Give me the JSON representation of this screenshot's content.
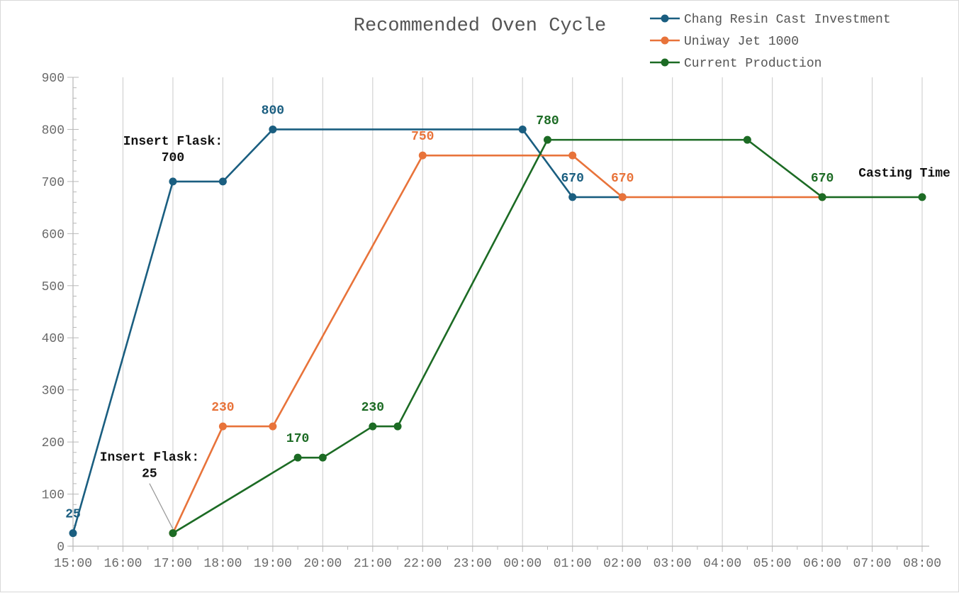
{
  "chart_data": {
    "type": "line",
    "title": "Recommended Oven Cycle",
    "xlabel": "",
    "ylabel": "",
    "x_ticks": [
      "15:00",
      "16:00",
      "17:00",
      "18:00",
      "19:00",
      "20:00",
      "21:00",
      "22:00",
      "23:00",
      "00:00",
      "01:00",
      "02:00",
      "03:00",
      "04:00",
      "05:00",
      "06:00",
      "07:00",
      "08:00"
    ],
    "x_range_hours": [
      0,
      17
    ],
    "ylim": [
      0,
      900
    ],
    "y_ticks": [
      "0",
      "100",
      "200",
      "300",
      "400",
      "500",
      "600",
      "700",
      "800",
      "900"
    ],
    "grid": "vertical",
    "legend_position": "top-right",
    "series": [
      {
        "name": "Chang Resin Cast Investment",
        "color": "#1a5e80",
        "points": [
          {
            "x": "15:00",
            "y": 25,
            "label": "25"
          },
          {
            "x": "17:00",
            "y": 700,
            "label": ""
          },
          {
            "x": "18:00",
            "y": 700,
            "label": ""
          },
          {
            "x": "19:00",
            "y": 800,
            "label": "800"
          },
          {
            "x": "00:00",
            "y": 800,
            "label": ""
          },
          {
            "x": "01:00",
            "y": 670,
            "label": "670"
          },
          {
            "x": "02:00",
            "y": 670,
            "label": ""
          }
        ]
      },
      {
        "name": "Uniway Jet 1000",
        "color": "#e8733a",
        "points": [
          {
            "x": "17:00",
            "y": 25,
            "label": ""
          },
          {
            "x": "18:00",
            "y": 230,
            "label": "230"
          },
          {
            "x": "19:00",
            "y": 230,
            "label": ""
          },
          {
            "x": "22:00",
            "y": 750,
            "label": "750"
          },
          {
            "x": "01:00",
            "y": 750,
            "label": ""
          },
          {
            "x": "02:00",
            "y": 670,
            "label": "670"
          },
          {
            "x": "06:00",
            "y": 670,
            "label": ""
          }
        ]
      },
      {
        "name": "Current Production",
        "color": "#1c6b24",
        "points": [
          {
            "x": "17:00",
            "y": 25,
            "label": ""
          },
          {
            "x": "19:30",
            "y": 170,
            "label": "170"
          },
          {
            "x": "20:00",
            "y": 170,
            "label": ""
          },
          {
            "x": "21:00",
            "y": 230,
            "label": "230"
          },
          {
            "x": "21:30",
            "y": 230,
            "label": ""
          },
          {
            "x": "00:30",
            "y": 780,
            "label": "780"
          },
          {
            "x": "04:30",
            "y": 780,
            "label": ""
          },
          {
            "x": "06:00",
            "y": 670,
            "label": "670"
          },
          {
            "x": "08:00",
            "y": 670,
            "label": ""
          }
        ]
      }
    ],
    "annotations": [
      {
        "lines": [
          "Insert Flask:",
          "700"
        ],
        "x": "17:00",
        "y": 700,
        "pointer": false
      },
      {
        "lines": [
          "Insert Flask:",
          "25"
        ],
        "x": "17:00",
        "y": 25,
        "pointer": true
      },
      {
        "lines": [
          "Casting Time"
        ],
        "x": "08:00",
        "y": 670,
        "pointer": false
      }
    ]
  }
}
